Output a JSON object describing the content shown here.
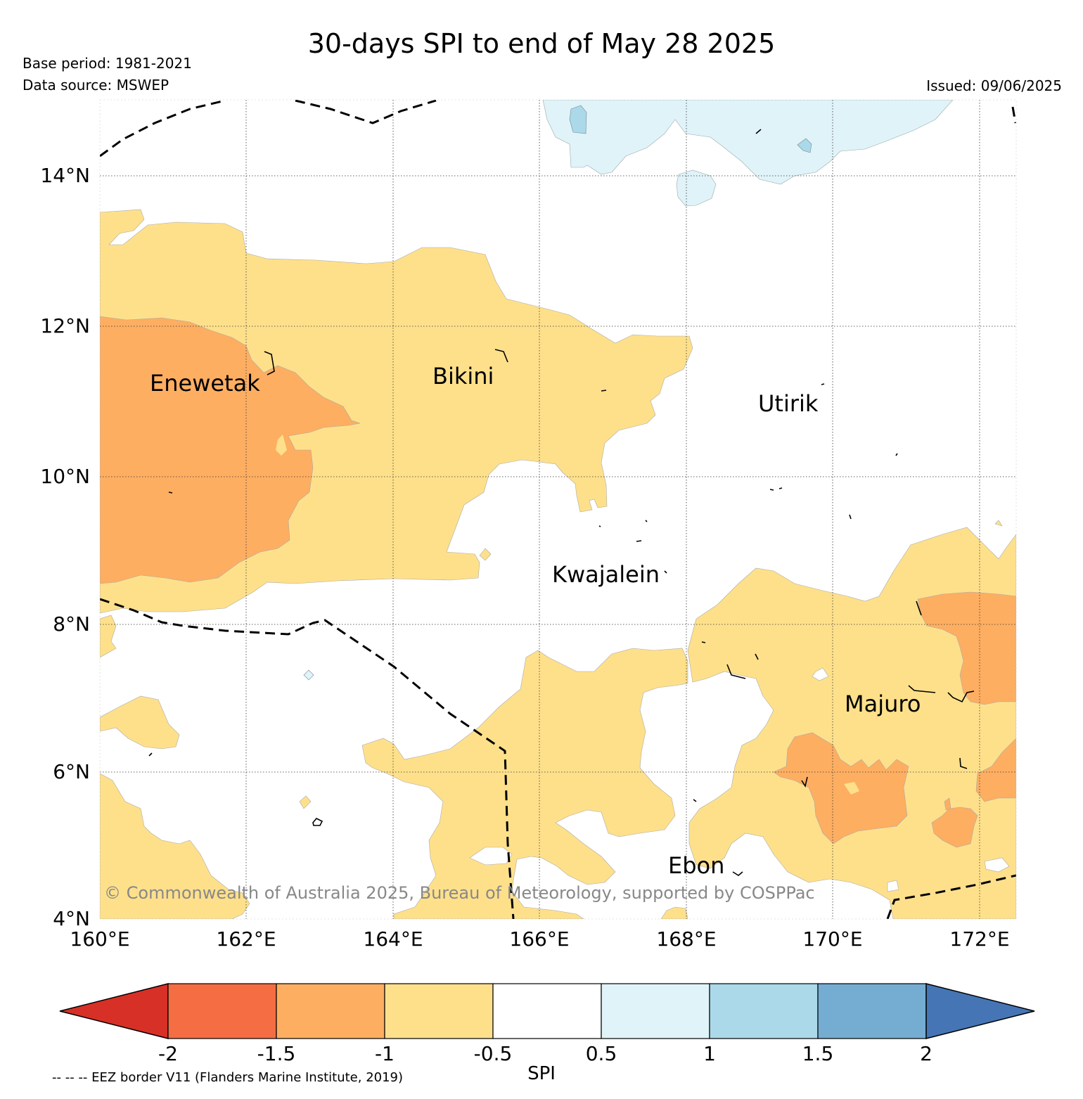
{
  "header": {
    "title": "30-days SPI to end of May 28 2025",
    "base_period": "Base period: 1981-2021",
    "data_source": "Data source: MSWEP",
    "issued": "Issued: 09/06/2025"
  },
  "map": {
    "lon_range": [
      160,
      172.5
    ],
    "lat_range": [
      4,
      15
    ],
    "lon_ticks": [
      "160°E",
      "162°E",
      "164°E",
      "166°E",
      "168°E",
      "170°E",
      "172°E"
    ],
    "lat_ticks": [
      "4°N",
      "6°N",
      "8°N",
      "10°N",
      "12°N",
      "14°N"
    ],
    "places": [
      {
        "name": "Enewetak"
      },
      {
        "name": "Bikini"
      },
      {
        "name": "Utirik"
      },
      {
        "name": "Kwajalein"
      },
      {
        "name": "Majuro"
      },
      {
        "name": "Ebon"
      }
    ],
    "copyright": "© Commonwealth of Australia 2025, Bureau of Meteorology, supported by COSPPac"
  },
  "colorbar": {
    "label": "SPI",
    "ticks": [
      "-2",
      "-1.5",
      "-1",
      "-0.5",
      "0.5",
      "1",
      "1.5",
      "2"
    ],
    "colors": [
      "#d73027",
      "#f46d43",
      "#fdae61",
      "#fee08b",
      "#ffffff",
      "#e0f3f8",
      "#abd9e9",
      "#74add1",
      "#4575b4"
    ]
  },
  "legend_note": "-- -- -- EEZ border V11 (Flanders Marine Institute, 2019)"
}
